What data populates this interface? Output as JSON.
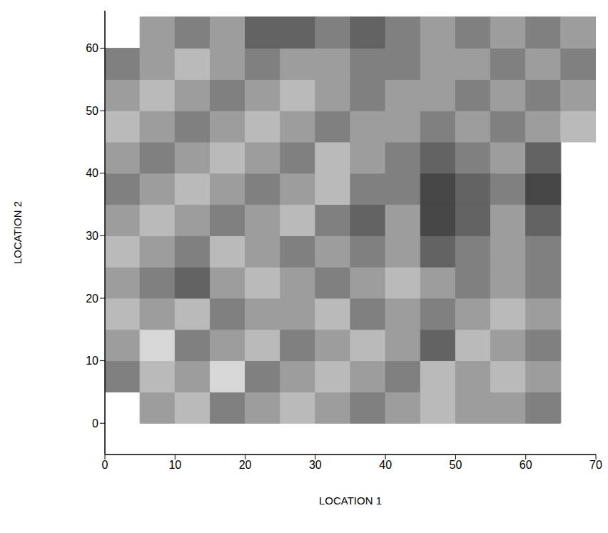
{
  "chart_data": {
    "type": "heatmap",
    "xlabel": "LOCATION 1",
    "ylabel": "LOCATION 2",
    "xlim": [
      0,
      70
    ],
    "ylim": [
      -5,
      66
    ],
    "xticks": [
      0,
      10,
      20,
      30,
      40,
      50,
      60,
      70
    ],
    "yticks": [
      0,
      10,
      20,
      30,
      40,
      50,
      60
    ],
    "grid": false,
    "x_bins": [
      0,
      5,
      10,
      15,
      20,
      25,
      30,
      35,
      40,
      45,
      50,
      55,
      60,
      65,
      70
    ],
    "y_bins": [
      0,
      5,
      10,
      15,
      20,
      25,
      30,
      35,
      40,
      45,
      50,
      55,
      60,
      65
    ],
    "values": [
      [
        null,
        5,
        6,
        4,
        5,
        6,
        5,
        4,
        5,
        6,
        5,
        5,
        4,
        null
      ],
      [
        4,
        6,
        5,
        7,
        4,
        5,
        6,
        5,
        4,
        6,
        5,
        6,
        5,
        null
      ],
      [
        5,
        7,
        4,
        5,
        6,
        4,
        5,
        6,
        5,
        3,
        6,
        5,
        4,
        null
      ],
      [
        6,
        5,
        6,
        4,
        5,
        5,
        6,
        4,
        5,
        4,
        5,
        6,
        5,
        null
      ],
      [
        5,
        4,
        3,
        5,
        6,
        5,
        4,
        5,
        6,
        5,
        4,
        5,
        4,
        null
      ],
      [
        6,
        5,
        4,
        6,
        5,
        4,
        5,
        4,
        5,
        3,
        4,
        5,
        4,
        null
      ],
      [
        5,
        6,
        5,
        4,
        5,
        6,
        4,
        3,
        5,
        2,
        3,
        5,
        3,
        null
      ],
      [
        4,
        5,
        6,
        5,
        4,
        5,
        6,
        4,
        4,
        2,
        3,
        4,
        2,
        null
      ],
      [
        5,
        4,
        5,
        6,
        5,
        4,
        6,
        5,
        4,
        3,
        4,
        5,
        3,
        null
      ],
      [
        6,
        5,
        4,
        5,
        6,
        5,
        4,
        5,
        5,
        4,
        5,
        4,
        5,
        6
      ],
      [
        5,
        6,
        5,
        4,
        5,
        6,
        5,
        4,
        5,
        5,
        4,
        5,
        4,
        5
      ],
      [
        4,
        5,
        6,
        5,
        4,
        5,
        5,
        4,
        4,
        5,
        5,
        4,
        5,
        4
      ],
      [
        null,
        5,
        4,
        5,
        3,
        3,
        4,
        3,
        4,
        5,
        4,
        5,
        4,
        5
      ]
    ]
  }
}
